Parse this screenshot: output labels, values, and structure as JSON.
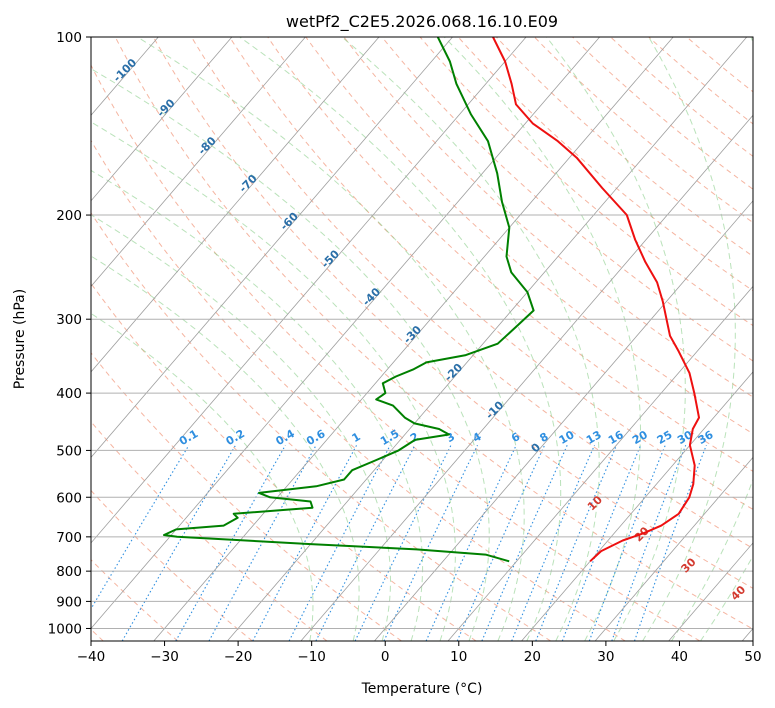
{
  "chart_data": {
    "type": "line",
    "subtype": "skew-t log-p sounding",
    "title": "wetPf2_C2E5.2026.068.16.10.E09",
    "xlabel": "Temperature (°C)",
    "ylabel": "Pressure (hPa)",
    "xlim": [
      -40,
      50
    ],
    "ylim": [
      1050,
      100
    ],
    "yscale": "log",
    "x_ticks": [
      -40,
      -30,
      -20,
      -10,
      0,
      10,
      20,
      30,
      40,
      50
    ],
    "y_ticks": [
      100,
      200,
      300,
      400,
      500,
      600,
      700,
      800,
      900,
      1000
    ],
    "grid": true,
    "dry_adiabat_labels": [
      "-100",
      "-90",
      "-80",
      "-70",
      "-60",
      "-50",
      "-40",
      "-30",
      "-20",
      "-10",
      "0"
    ],
    "mixing_ratio_labels": [
      "0.1",
      "0.2",
      "0.4",
      "0.6",
      "1",
      "1.5",
      "2",
      "3",
      "4",
      "6",
      "8",
      "10",
      "13",
      "16",
      "20",
      "25",
      "30",
      "36"
    ],
    "moist_adiabat_labels": [
      "10",
      "20",
      "30",
      "40"
    ],
    "series": [
      {
        "name": "temperature",
        "color": "#ee1010",
        "points": [
          {
            "p": 770,
            "t": 20.0
          },
          {
            "p": 740,
            "t": 20.3
          },
          {
            "p": 710,
            "t": 22.0
          },
          {
            "p": 690,
            "t": 24.0
          },
          {
            "p": 670,
            "t": 25.5
          },
          {
            "p": 640,
            "t": 26.5
          },
          {
            "p": 600,
            "t": 26.0
          },
          {
            "p": 570,
            "t": 25.0
          },
          {
            "p": 530,
            "t": 23.0
          },
          {
            "p": 490,
            "t": 20.0
          },
          {
            "p": 460,
            "t": 18.5
          },
          {
            "p": 440,
            "t": 18.0
          },
          {
            "p": 400,
            "t": 14.5
          },
          {
            "p": 370,
            "t": 11.5
          },
          {
            "p": 340,
            "t": 7.5
          },
          {
            "p": 320,
            "t": 4.5
          },
          {
            "p": 280,
            "t": -0.5
          },
          {
            "p": 260,
            "t": -3.5
          },
          {
            "p": 240,
            "t": -7.5
          },
          {
            "p": 220,
            "t": -11.5
          },
          {
            "p": 200,
            "t": -15.5
          },
          {
            "p": 180,
            "t": -22.0
          },
          {
            "p": 160,
            "t": -29.0
          },
          {
            "p": 150,
            "t": -33.5
          },
          {
            "p": 140,
            "t": -39.0
          },
          {
            "p": 130,
            "t": -43.5
          },
          {
            "p": 120,
            "t": -46.5
          },
          {
            "p": 110,
            "t": -50.0
          },
          {
            "p": 100,
            "t": -54.5
          }
        ]
      },
      {
        "name": "dewpoint",
        "color": "#008000",
        "points": [
          {
            "p": 770,
            "t": 9.0
          },
          {
            "p": 750,
            "t": 5.0
          },
          {
            "p": 735,
            "t": -5.0
          },
          {
            "p": 720,
            "t": -20.0
          },
          {
            "p": 700,
            "t": -39.0
          },
          {
            "p": 695,
            "t": -41.0
          },
          {
            "p": 680,
            "t": -40.0
          },
          {
            "p": 670,
            "t": -34.0
          },
          {
            "p": 650,
            "t": -33.0
          },
          {
            "p": 640,
            "t": -34.0
          },
          {
            "p": 625,
            "t": -24.0
          },
          {
            "p": 610,
            "t": -25.0
          },
          {
            "p": 600,
            "t": -31.0
          },
          {
            "p": 590,
            "t": -33.0
          },
          {
            "p": 575,
            "t": -26.0
          },
          {
            "p": 560,
            "t": -23.0
          },
          {
            "p": 540,
            "t": -23.0
          },
          {
            "p": 520,
            "t": -21.0
          },
          {
            "p": 500,
            "t": -19.0
          },
          {
            "p": 480,
            "t": -18.0
          },
          {
            "p": 470,
            "t": -14.0
          },
          {
            "p": 460,
            "t": -16.0
          },
          {
            "p": 450,
            "t": -20.0
          },
          {
            "p": 440,
            "t": -22.0
          },
          {
            "p": 420,
            "t": -25.0
          },
          {
            "p": 410,
            "t": -28.0
          },
          {
            "p": 400,
            "t": -27.5
          },
          {
            "p": 385,
            "t": -29.0
          },
          {
            "p": 375,
            "t": -28.0
          },
          {
            "p": 365,
            "t": -26.5
          },
          {
            "p": 355,
            "t": -25.5
          },
          {
            "p": 345,
            "t": -21.0
          },
          {
            "p": 330,
            "t": -18.0
          },
          {
            "p": 310,
            "t": -17.5
          },
          {
            "p": 290,
            "t": -17.0
          },
          {
            "p": 270,
            "t": -20.0
          },
          {
            "p": 250,
            "t": -24.5
          },
          {
            "p": 235,
            "t": -27.0
          },
          {
            "p": 210,
            "t": -30.0
          },
          {
            "p": 190,
            "t": -34.0
          },
          {
            "p": 170,
            "t": -38.0
          },
          {
            "p": 150,
            "t": -43.0
          },
          {
            "p": 135,
            "t": -48.5
          },
          {
            "p": 120,
            "t": -54.0
          },
          {
            "p": 110,
            "t": -57.5
          },
          {
            "p": 100,
            "t": -62.0
          }
        ]
      }
    ]
  }
}
